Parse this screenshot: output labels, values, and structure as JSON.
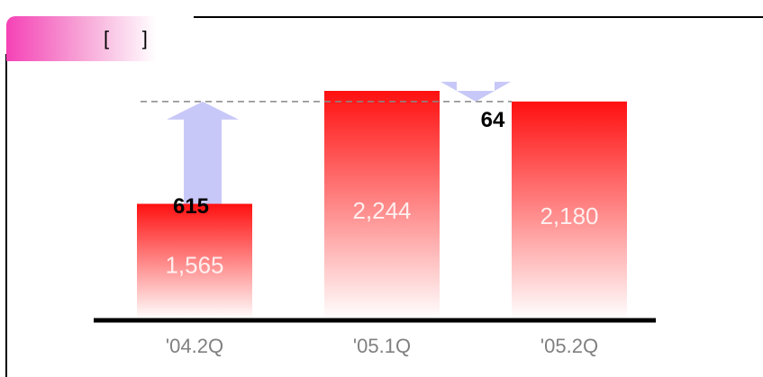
{
  "header": {
    "title_text": "[      ]"
  },
  "chart_data": {
    "type": "bar",
    "categories": [
      "'04.2Q",
      "'05.1Q",
      "'05.2Q"
    ],
    "values": [
      1565,
      2244,
      2180
    ],
    "value_labels": [
      "1,565",
      "2,244",
      "2,180"
    ],
    "ylim": [
      870,
      2244
    ],
    "annotations": [
      {
        "label": "615",
        "direction": "up",
        "from": "'04.2Q",
        "reference": "'05.2Q"
      },
      {
        "label": "64",
        "direction": "down",
        "between": [
          "'05.1Q",
          "'05.2Q"
        ]
      }
    ],
    "reference_line": {
      "value": 2180,
      "style": "dashed"
    },
    "colors": {
      "bar_top": "#ff1010",
      "bar_bottom": "#ffffff",
      "arrow": "#c8c8f8",
      "axis": "#000000",
      "tick_text": "#808080"
    }
  }
}
